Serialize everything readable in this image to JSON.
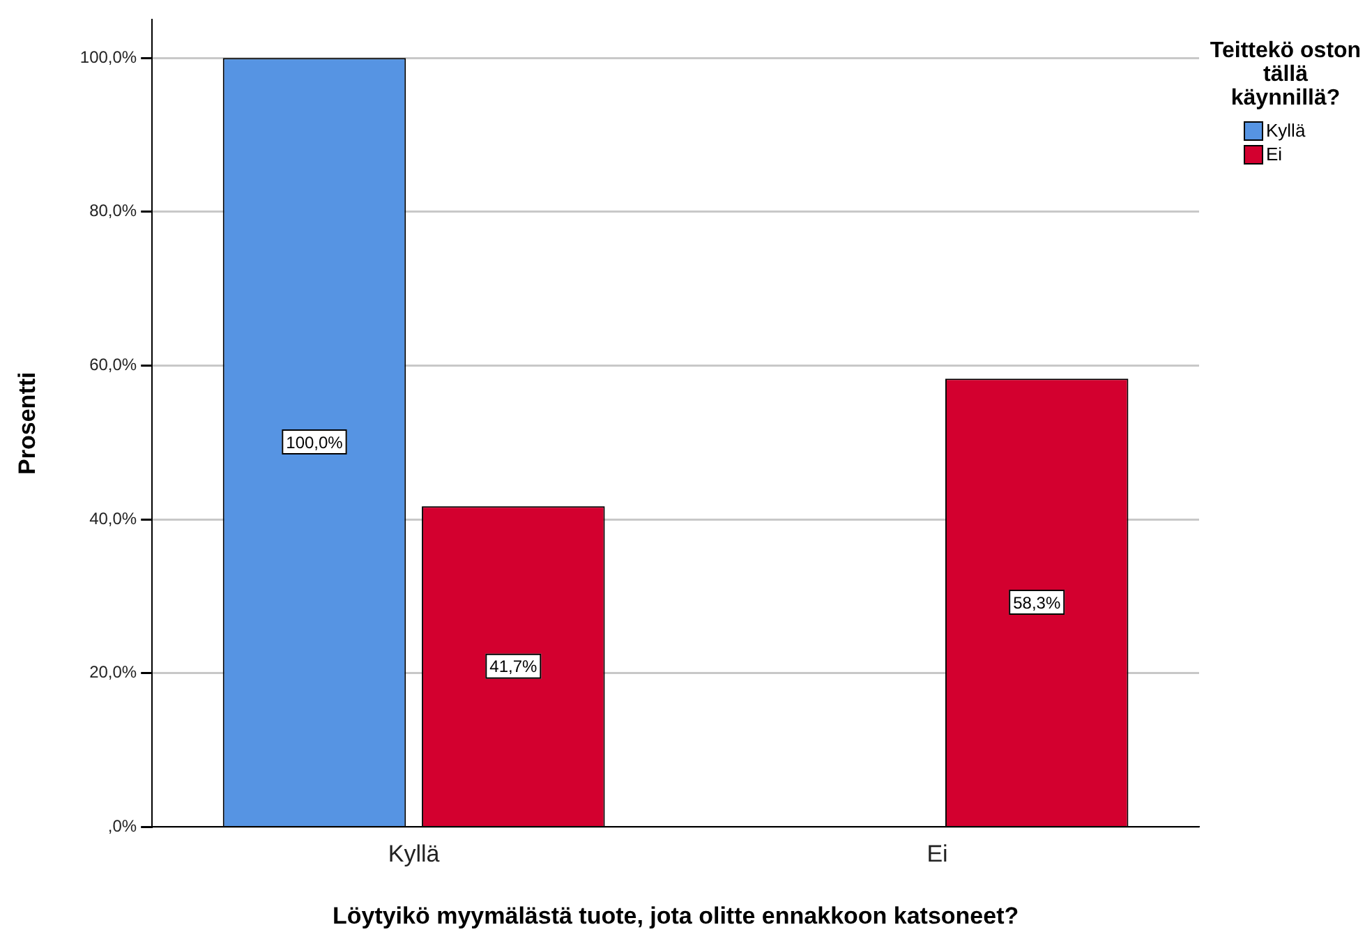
{
  "chart_data": {
    "type": "bar",
    "xlabel": "Löytyikö myymälästä tuote, jota olitte ennakkoon katsoneet?",
    "ylabel": "Prosentti",
    "legend_title": "Teittekö oston tällä käynnillä?",
    "categories": [
      "Kyllä",
      "Ei"
    ],
    "series": [
      {
        "name": "Kyllä",
        "color": "#5694e3",
        "values": [
          100,
          0
        ],
        "value_labels": [
          "100,0%",
          null
        ]
      },
      {
        "name": "Ei",
        "color": "#d3002f",
        "values": [
          41.7,
          58.3
        ],
        "value_labels": [
          "41,7%",
          "58,3%"
        ]
      }
    ],
    "ylim": [
      0,
      105
    ],
    "yticks": [
      {
        "value": 0,
        "label": ",0%"
      },
      {
        "value": 20,
        "label": "20,0%"
      },
      {
        "value": 40,
        "label": "40,0%"
      },
      {
        "value": 60,
        "label": "60,0%"
      },
      {
        "value": 80,
        "label": "80,0%"
      },
      {
        "value": 100,
        "label": "100,0%"
      }
    ],
    "grid": "y",
    "legend": "top right"
  }
}
